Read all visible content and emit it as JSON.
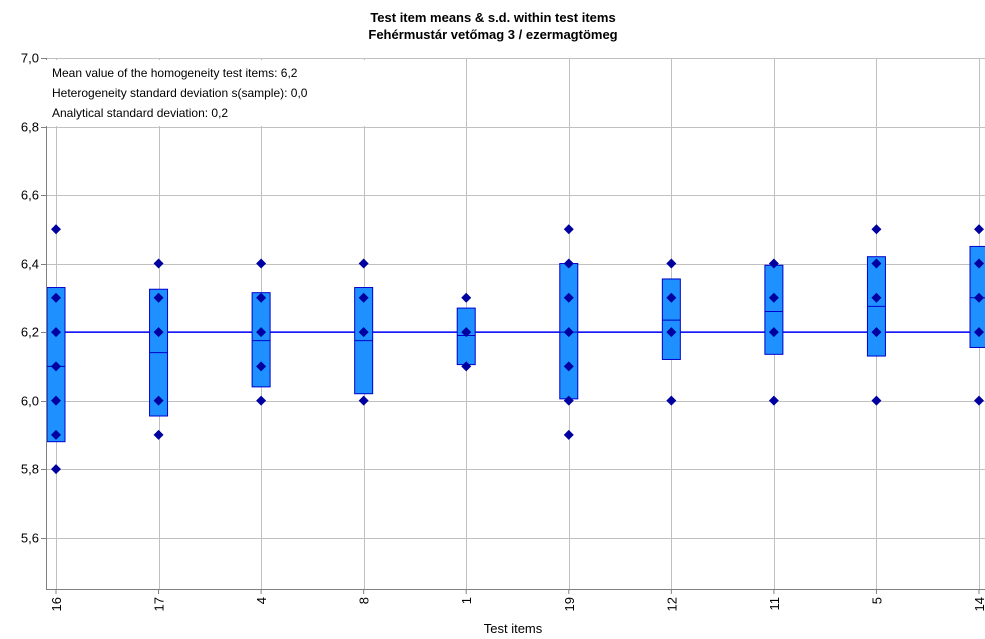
{
  "chart_data": {
    "type": "box",
    "title": "Test item means & s.d. within test items",
    "subtitle": "Fehérmustár vetőmag 3 / ezermagtömeg",
    "xlabel": "Test items",
    "ylabel": "",
    "ylim": [
      5.45,
      7.0
    ],
    "yticks": [
      5.6,
      5.8,
      6.0,
      6.2,
      6.4,
      6.6,
      6.8,
      7.0
    ],
    "ytick_labels": [
      "5,6",
      "5,8",
      "6,0",
      "6,2",
      "6,4",
      "6,6",
      "6,8",
      "7,0"
    ],
    "grid": true,
    "reference_line": 6.2,
    "annotations": [
      "Mean value of the homogeneity test items: 6,2",
      "Heterogeneity standard deviation s(sample): 0,0",
      "Analytical standard deviation: 0,2"
    ],
    "categories": [
      "16",
      "17",
      "4",
      "8",
      "1",
      "19",
      "12",
      "11",
      "5",
      "14"
    ],
    "items": [
      {
        "id": "16",
        "mean": 6.1,
        "low": 5.88,
        "high": 6.33,
        "points": [
          5.8,
          5.9,
          6.0,
          6.1,
          6.2,
          6.3,
          6.5
        ]
      },
      {
        "id": "17",
        "mean": 6.14,
        "low": 5.955,
        "high": 6.325,
        "points": [
          5.9,
          6.0,
          6.2,
          6.3,
          6.4
        ]
      },
      {
        "id": "4",
        "mean": 6.175,
        "low": 6.04,
        "high": 6.315,
        "points": [
          6.0,
          6.1,
          6.2,
          6.3,
          6.4
        ]
      },
      {
        "id": "8",
        "mean": 6.175,
        "low": 6.02,
        "high": 6.33,
        "points": [
          6.0,
          6.2,
          6.3,
          6.4
        ]
      },
      {
        "id": "1",
        "mean": 6.19,
        "low": 6.105,
        "high": 6.27,
        "points": [
          6.1,
          6.2,
          6.3
        ]
      },
      {
        "id": "19",
        "mean": 6.2,
        "low": 6.005,
        "high": 6.4,
        "points": [
          5.9,
          6.0,
          6.1,
          6.2,
          6.3,
          6.4,
          6.5
        ]
      },
      {
        "id": "12",
        "mean": 6.235,
        "low": 6.12,
        "high": 6.355,
        "points": [
          6.0,
          6.2,
          6.3,
          6.4
        ]
      },
      {
        "id": "11",
        "mean": 6.26,
        "low": 6.135,
        "high": 6.395,
        "points": [
          6.0,
          6.2,
          6.3,
          6.4
        ]
      },
      {
        "id": "5",
        "mean": 6.275,
        "low": 6.13,
        "high": 6.42,
        "points": [
          6.0,
          6.2,
          6.3,
          6.4,
          6.5
        ]
      },
      {
        "id": "14",
        "mean": 6.3,
        "low": 6.155,
        "high": 6.45,
        "points": [
          6.0,
          6.2,
          6.3,
          6.4,
          6.5
        ]
      }
    ],
    "colors": {
      "box_fill": "#1e90ff",
      "box_stroke": "#0000cc",
      "marker": "#0000a0",
      "mean_line": "#0000ff",
      "grid": "#c0c0c0",
      "axis": "#808080"
    }
  }
}
